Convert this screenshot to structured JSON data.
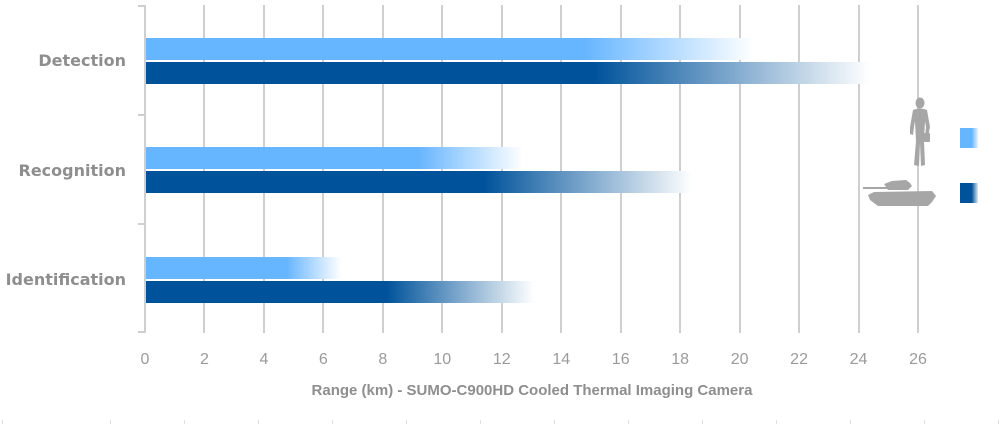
{
  "chart_data": {
    "type": "bar",
    "orientation": "horizontal",
    "title": "",
    "xlabel": "Range (km) - SUMO-C900HD Cooled Thermal Imaging Camera",
    "ylabel": "",
    "categories": [
      "Detection",
      "Recognition",
      "Identification"
    ],
    "series": [
      {
        "name": "Human (person)",
        "legend_icon": "soldier-silhouette",
        "color": "#66b5ff",
        "values": [
          20.5,
          12.7,
          6.6
        ]
      },
      {
        "name": "Vehicle (tank)",
        "legend_icon": "tank-silhouette",
        "color": "#00539b",
        "values": [
          24.4,
          18.4,
          13.1
        ]
      }
    ],
    "xlim": [
      0,
      26
    ],
    "xticks": [
      0,
      2,
      4,
      6,
      8,
      10,
      12,
      14,
      16,
      18,
      20,
      22,
      24,
      26
    ],
    "grid": true,
    "legend_position": "right",
    "bar_style": "gradient fade to white at end"
  },
  "labels": {
    "categories": [
      "Detection",
      "Recognition",
      "Identification"
    ],
    "xticks": [
      "0",
      "2",
      "4",
      "6",
      "8",
      "10",
      "12",
      "14",
      "16",
      "18",
      "20",
      "22",
      "24",
      "26"
    ],
    "x_title": "Range (km) - SUMO-C900HD Cooled Thermal Imaging Camera"
  },
  "colors": {
    "light": "#66b5ff",
    "dark": "#00539b",
    "grid": "#cfcfcf",
    "label": "#8e8e8e",
    "icon": "#a6a6a6"
  }
}
